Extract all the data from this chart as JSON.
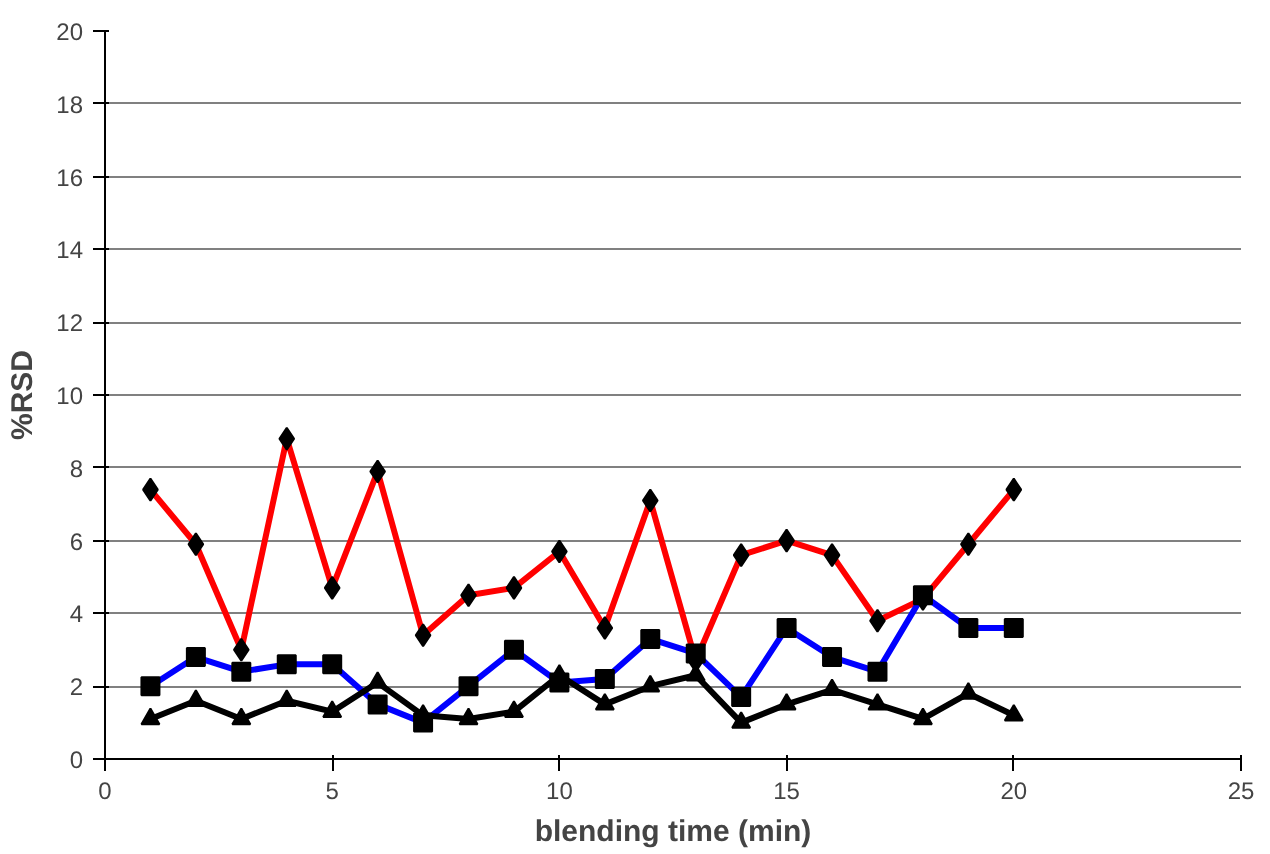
{
  "chart_data": {
    "type": "line",
    "xlabel": "blending time (min)",
    "ylabel": "%RSD",
    "x": [
      1,
      2,
      3,
      4,
      5,
      6,
      7,
      8,
      9,
      10,
      11,
      12,
      13,
      14,
      15,
      16,
      17,
      18,
      19,
      20
    ],
    "series": [
      {
        "color": "#ff0000",
        "marker": "diamond",
        "values": [
          7.4,
          5.9,
          3.0,
          8.8,
          4.7,
          7.9,
          3.4,
          4.5,
          4.7,
          5.7,
          3.6,
          7.1,
          2.7,
          5.6,
          6.0,
          5.6,
          3.8,
          4.4,
          5.9,
          7.4
        ]
      },
      {
        "color": "#0000ff",
        "marker": "square",
        "values": [
          2.0,
          2.8,
          2.4,
          2.6,
          2.6,
          1.5,
          1.0,
          2.0,
          3.0,
          2.1,
          2.2,
          3.3,
          2.9,
          1.7,
          3.6,
          2.8,
          2.4,
          4.5,
          3.6,
          3.6
        ]
      },
      {
        "color": "#000000",
        "marker": "triangle",
        "values": [
          1.1,
          1.6,
          1.1,
          1.6,
          1.3,
          2.1,
          1.2,
          1.1,
          1.3,
          2.3,
          1.5,
          2.0,
          2.3,
          1.0,
          1.5,
          1.9,
          1.5,
          1.1,
          1.8,
          1.2
        ]
      }
    ],
    "xlim": [
      0,
      25
    ],
    "xticks": [
      0,
      5,
      10,
      15,
      20,
      25
    ],
    "ylim": [
      0,
      20
    ],
    "yticks": [
      0,
      2,
      4,
      6,
      8,
      10,
      12,
      14,
      16,
      18,
      20
    ],
    "grid": "y",
    "line_style": "solid"
  }
}
